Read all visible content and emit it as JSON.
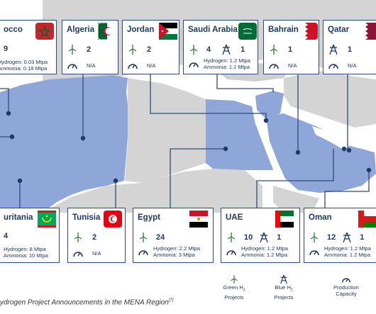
{
  "colors": {
    "highlight": "#8ea6d8",
    "land": "#d4d4d4",
    "sea": "#ffffff",
    "border": "#2e4a7d",
    "text": "#1f3864"
  },
  "icons": {
    "green": "wind-turbine-icon",
    "blue": "pylon-icon",
    "capacity": "gauge-icon"
  },
  "cards": {
    "morocco": {
      "name": "occo",
      "green": "9",
      "blue": "",
      "hydrogen": "Hydrogen: 0.03 Mtpa",
      "ammonia": "Ammonia: 0.18 Mtpa",
      "na": ""
    },
    "algeria": {
      "name": "Algeria",
      "green": "2",
      "blue": "",
      "hydrogen": "",
      "ammonia": "",
      "na": "N/A"
    },
    "jordan": {
      "name": "Jordan",
      "green": "2",
      "blue": "",
      "hydrogen": "",
      "ammonia": "",
      "na": "N/A"
    },
    "saudi": {
      "name": "Saudi Arabia",
      "green": "4",
      "blue": "1",
      "hydrogen": "Hydrogen: 1.2 Mtpa",
      "ammonia": "Ammonia: 1.2 Mtpa",
      "na": ""
    },
    "bahrain": {
      "name": "Bahrain",
      "green": "1",
      "blue": "",
      "hydrogen": "",
      "ammonia": "",
      "na": "N/A"
    },
    "qatar": {
      "name": "Qatar",
      "green": "",
      "blue": "1",
      "hydrogen": "",
      "ammonia": "",
      "na": "N/A"
    },
    "mauritania": {
      "name": "uritania",
      "green": "4",
      "blue": "",
      "hydrogen": "Hydrogen: 8 Mtpa",
      "ammonia": "Ammonia: 10 Mtpa",
      "na": ""
    },
    "tunisia": {
      "name": "Tunisia",
      "green": "2",
      "blue": "",
      "hydrogen": "",
      "ammonia": "",
      "na": "N/A"
    },
    "egypt": {
      "name": "Egypt",
      "green": "24",
      "blue": "",
      "hydrogen": "Hydrogen: 2.2 Mtpa",
      "ammonia": "Ammonia: 3 Mtpa",
      "na": ""
    },
    "uae": {
      "name": "UAE",
      "green": "10",
      "blue": "1",
      "hydrogen": "Hydrogen: 1.2 Mtpa",
      "ammonia": "Ammonia: 1.2 Mtpa",
      "na": ""
    },
    "oman": {
      "name": "Oman",
      "green": "12",
      "blue": "1",
      "hydrogen": "Hydrogen: 1.2 Mtpa",
      "ammonia": "Ammonia: 1.2 Mtpa",
      "na": ""
    }
  },
  "legend": {
    "green_line1": "Green H",
    "green_sub": "2",
    "green_line2": "Projects",
    "blue_line1": "Blue H",
    "blue_sub": "2",
    "blue_line2": "Projects",
    "capacity_line1": "Production",
    "capacity_line2": "Capacity"
  },
  "caption": {
    "text": "ydrogen Project Announcements in the MENA Region",
    "ref": "[7]"
  }
}
